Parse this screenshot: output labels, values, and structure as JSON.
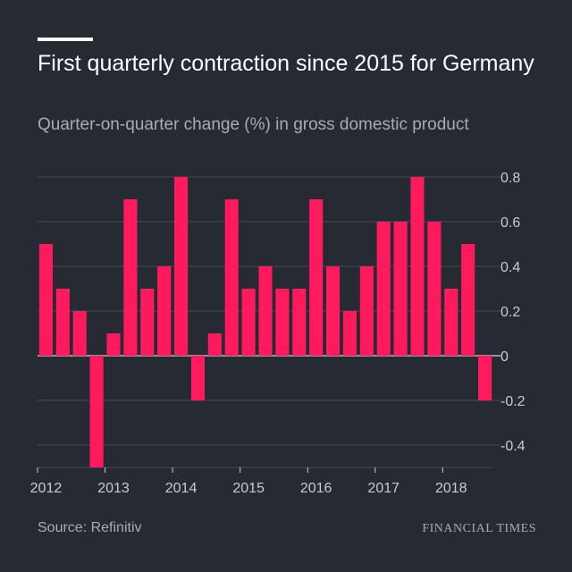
{
  "title": "First quarterly contraction since 2015 for Germany",
  "subtitle": "Quarter-on-quarter change (%) in gross domestic product",
  "source": "Source: Refinitiv",
  "brand": "FINANCIAL TIMES",
  "colors": {
    "background": "#262a33",
    "bar": "#ff1a5e",
    "grid": "#454953",
    "axis_text": "#c9cbcf",
    "title": "#ffffff"
  },
  "chart_data": {
    "type": "bar",
    "title": "First quarterly contraction since 2015 for Germany",
    "subtitle": "Quarter-on-quarter change (%) in gross domestic product",
    "xlabel": "",
    "ylabel": "",
    "categories": [
      "2012 Q1",
      "2012 Q2",
      "2012 Q3",
      "2012 Q4",
      "2013 Q1",
      "2013 Q2",
      "2013 Q3",
      "2013 Q4",
      "2014 Q1",
      "2014 Q2",
      "2014 Q3",
      "2014 Q4",
      "2015 Q1",
      "2015 Q2",
      "2015 Q3",
      "2015 Q4",
      "2016 Q1",
      "2016 Q2",
      "2016 Q3",
      "2016 Q4",
      "2017 Q1",
      "2017 Q2",
      "2017 Q3",
      "2017 Q4",
      "2018 Q1",
      "2018 Q2",
      "2018 Q3"
    ],
    "values": [
      0.5,
      0.3,
      0.2,
      -0.5,
      0.1,
      0.7,
      0.3,
      0.4,
      0.8,
      -0.2,
      0.1,
      0.7,
      0.3,
      0.4,
      0.3,
      0.3,
      0.7,
      0.4,
      0.2,
      0.4,
      0.6,
      0.6,
      0.8,
      0.6,
      0.3,
      0.5,
      -0.2
    ],
    "ylim": [
      -0.5,
      0.8
    ],
    "yticks": [
      0.8,
      0.6,
      0.4,
      0.2,
      0,
      -0.2,
      -0.4
    ],
    "ytick_labels": [
      "0.8",
      "0.6",
      "0.4",
      "0.2",
      "0",
      "-0.2",
      "-0.4"
    ],
    "xticks": [
      "2012",
      "2013",
      "2014",
      "2015",
      "2016",
      "2017",
      "2018"
    ],
    "grid": true,
    "y_axis_position": "right"
  }
}
